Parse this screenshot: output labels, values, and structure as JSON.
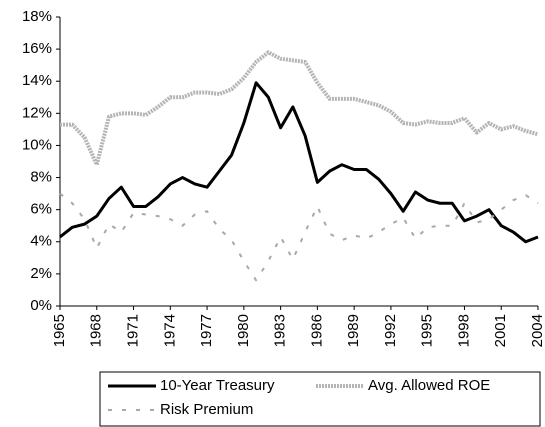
{
  "chart_data": {
    "type": "line",
    "x": [
      1965,
      1966,
      1967,
      1968,
      1969,
      1970,
      1971,
      1972,
      1973,
      1974,
      1975,
      1976,
      1977,
      1978,
      1979,
      1980,
      1981,
      1982,
      1983,
      1984,
      1985,
      1986,
      1987,
      1988,
      1989,
      1990,
      1991,
      1992,
      1993,
      1994,
      1995,
      1996,
      1997,
      1998,
      1999,
      2000,
      2001,
      2002,
      2003,
      2004
    ],
    "xlim": [
      1965,
      2004
    ],
    "xticks": [
      1965,
      1968,
      1971,
      1974,
      1977,
      1980,
      1983,
      1986,
      1989,
      1992,
      1995,
      1998,
      2001,
      2004
    ],
    "ylim": [
      0,
      18
    ],
    "yticks": [
      {
        "value": 0,
        "label": "0%"
      },
      {
        "value": 2,
        "label": "2%"
      },
      {
        "value": 4,
        "label": "4%"
      },
      {
        "value": 6,
        "label": "6%"
      },
      {
        "value": 8,
        "label": "8%"
      },
      {
        "value": 10,
        "label": "10%"
      },
      {
        "value": 12,
        "label": "12%"
      },
      {
        "value": 14,
        "label": "14%"
      },
      {
        "value": 16,
        "label": "16%"
      },
      {
        "value": 18,
        "label": "18%"
      }
    ],
    "series": [
      {
        "name": "10-Year Treasury",
        "color": "#000000",
        "width": 3,
        "dash": "none",
        "values": [
          4.3,
          4.9,
          5.1,
          5.6,
          6.7,
          7.4,
          6.2,
          6.2,
          6.8,
          7.6,
          8.0,
          7.6,
          7.4,
          8.4,
          9.4,
          11.4,
          13.9,
          13.0,
          11.1,
          12.4,
          10.6,
          7.7,
          8.4,
          8.8,
          8.5,
          8.5,
          7.9,
          7.0,
          5.9,
          7.1,
          6.6,
          6.4,
          6.4,
          5.3,
          5.6,
          6.0,
          5.0,
          4.6,
          4.0,
          4.3
        ]
      },
      {
        "name": "Avg. Allowed ROE",
        "color": "#b4b4b4",
        "width": 4,
        "dash": "2 1",
        "values": [
          11.3,
          11.3,
          10.5,
          8.8,
          11.8,
          12.0,
          12.0,
          11.9,
          12.4,
          13.0,
          13.0,
          13.3,
          13.3,
          13.2,
          13.5,
          14.2,
          15.2,
          15.8,
          15.4,
          15.3,
          15.2,
          13.9,
          12.9,
          12.9,
          12.9,
          12.7,
          12.5,
          12.1,
          11.4,
          11.3,
          11.5,
          11.4,
          11.4,
          11.7,
          10.8,
          11.4,
          11.0,
          11.2,
          10.9,
          10.7
        ]
      },
      {
        "name": "Risk Premium",
        "color": "#a8a8a8",
        "width": 2,
        "dash": "4 10",
        "values": [
          7.0,
          6.4,
          5.4,
          3.6,
          5.1,
          4.6,
          5.8,
          5.7,
          5.6,
          5.4,
          5.0,
          5.7,
          5.9,
          4.8,
          4.1,
          2.8,
          1.6,
          2.8,
          4.3,
          2.9,
          4.6,
          6.2,
          4.5,
          4.1,
          4.4,
          4.2,
          4.6,
          5.1,
          5.5,
          4.2,
          4.9,
          5.0,
          5.0,
          6.4,
          5.2,
          5.4,
          6.0,
          6.6,
          6.9,
          6.4
        ]
      }
    ]
  }
}
